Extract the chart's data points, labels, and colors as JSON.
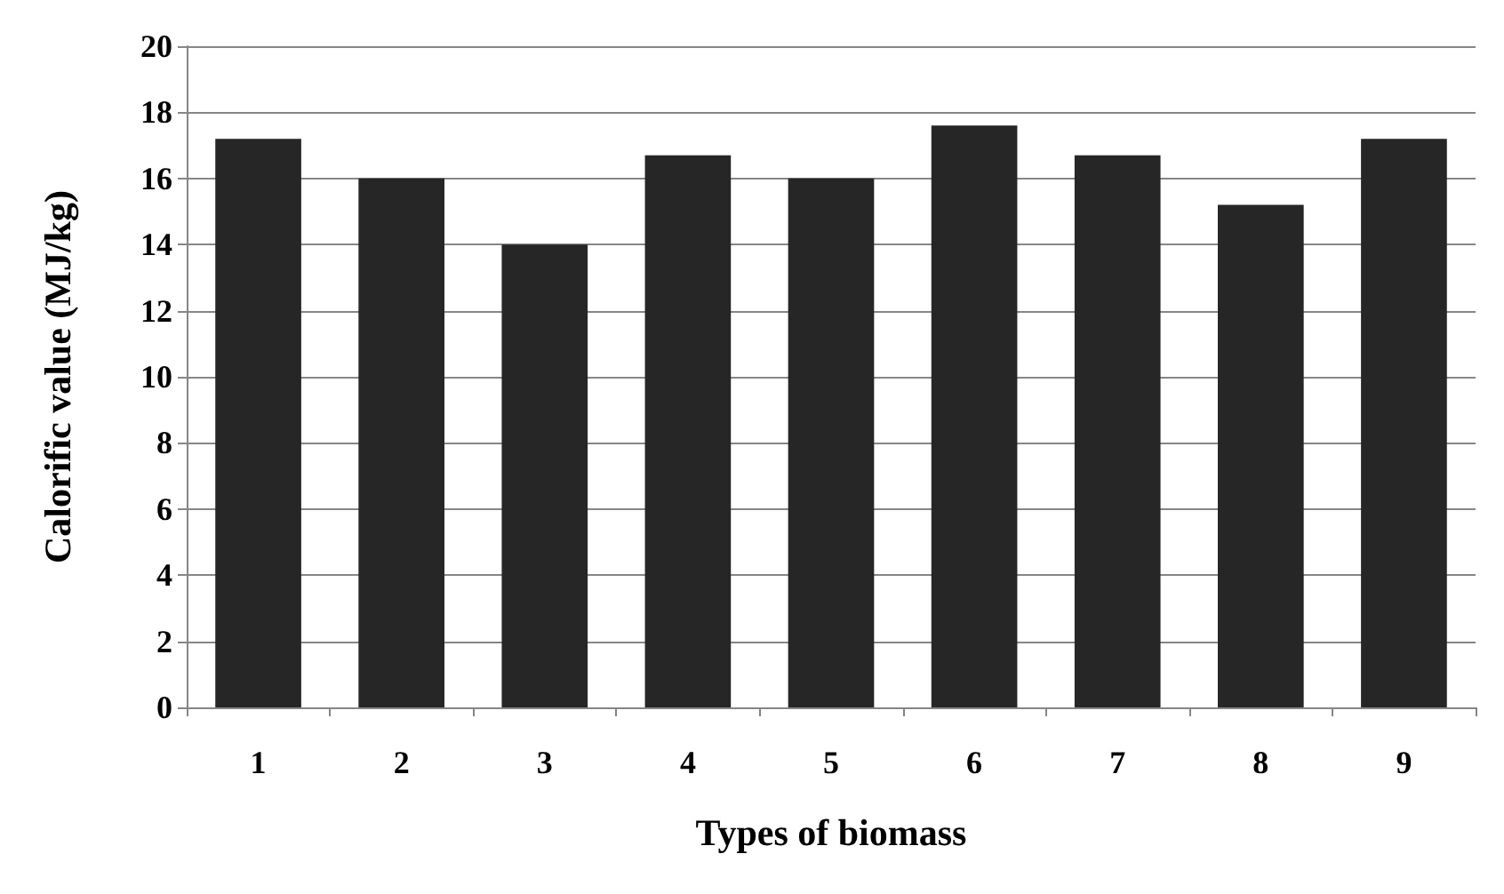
{
  "chart_data": {
    "type": "bar",
    "xlabel": "Types of biomass",
    "ylabel": "Calorific value (MJ/kg)",
    "categories": [
      "1",
      "2",
      "3",
      "4",
      "5",
      "6",
      "7",
      "8",
      "9"
    ],
    "values": [
      17.2,
      16.0,
      14.0,
      16.7,
      16.0,
      17.6,
      16.7,
      15.2,
      17.2
    ],
    "color": "#262626",
    "ylim": [
      0,
      20
    ],
    "yticks": [
      0,
      2,
      4,
      6,
      8,
      10,
      12,
      14,
      16,
      18,
      20
    ],
    "grid": "y"
  }
}
